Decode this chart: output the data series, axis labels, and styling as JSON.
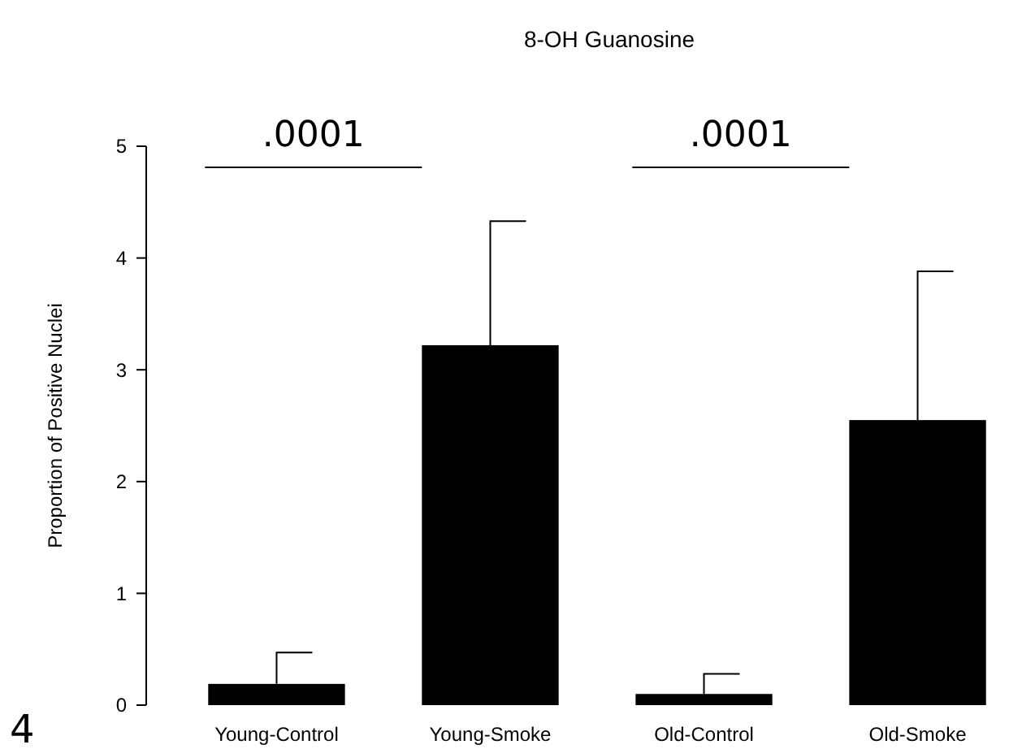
{
  "chart_data": {
    "type": "bar",
    "title": "8-OH Guanosine",
    "ylabel": "Proportion of Positive Nuclei",
    "categories": [
      "Young-Control",
      "Young-Smoke",
      "Old-Control",
      "Old-Smoke"
    ],
    "values": [
      0.19,
      3.22,
      0.1,
      2.55
    ],
    "color": "#000000",
    "errors": [
      [
        0.19,
        0.47
      ],
      [
        3.22,
        4.33
      ],
      [
        0.1,
        0.28
      ],
      [
        2.55,
        3.88
      ]
    ],
    "ylim": [
      0,
      5
    ],
    "yticks": [
      0,
      1,
      2,
      3,
      4,
      5
    ],
    "grid": false,
    "annotations": [
      ".0001",
      ".0001",
      "4"
    ]
  }
}
